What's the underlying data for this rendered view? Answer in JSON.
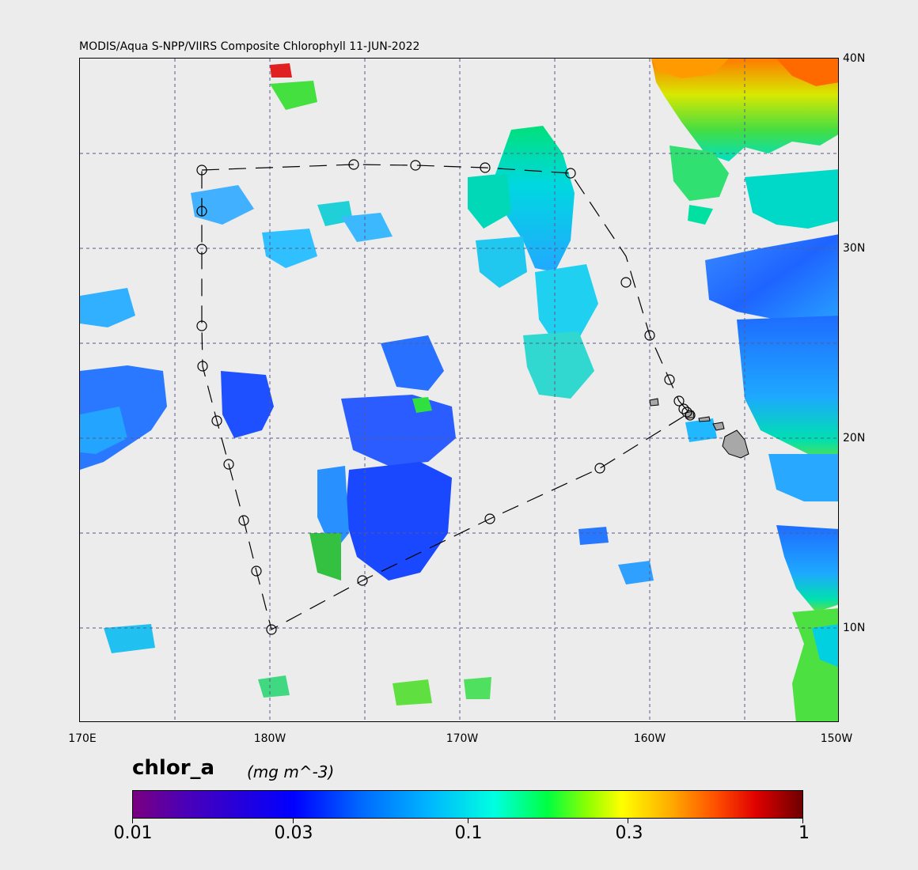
{
  "map": {
    "title": "MODIS/Aqua S-NPP/VIIRS Composite Chlorophyll 11-JUN-2022",
    "lat_labels": [
      "40N",
      "30N",
      "20N",
      "10N"
    ],
    "lon_labels": [
      "170E",
      "180W",
      "170W",
      "160W",
      "150W"
    ],
    "extent": {
      "lon_west": 170,
      "lon_east": 210,
      "lat_south": 5,
      "lat_north": 40
    },
    "grid_lines": "dashed"
  },
  "colorbar": {
    "title": "chlor_a",
    "units": "(mg m^-3)",
    "scale": "log",
    "tick_labels": [
      "0.01",
      "0.03",
      "0.1",
      "0.3",
      "1"
    ],
    "colors": [
      "#7a0080",
      "#0000ff",
      "#00b4ff",
      "#00ff40",
      "#ffff00",
      "#ff5000",
      "#6e0000"
    ]
  },
  "overlay": {
    "track_style": "dashed line with circle markers",
    "island_color": "#a8a8a8"
  }
}
